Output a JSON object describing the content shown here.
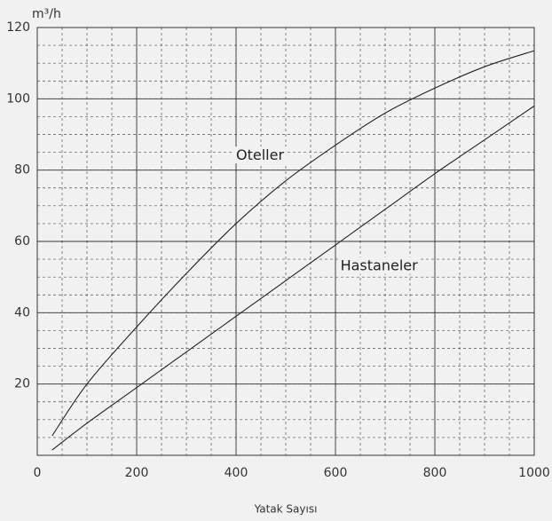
{
  "chart_data": {
    "type": "line",
    "y_label": "m³/h",
    "x_label": "Yatak Sayısı",
    "x": [
      30,
      100,
      200,
      300,
      400,
      500,
      600,
      700,
      800,
      900,
      1000
    ],
    "series": [
      {
        "name": "Oteller",
        "color": "#222222",
        "values": [
          5.5,
          20,
          36,
          51,
          65,
          77,
          87,
          96,
          103,
          109,
          113.5
        ]
      },
      {
        "name": "Hastaneler",
        "color": "#222222",
        "values": [
          1.5,
          9,
          19,
          29,
          39,
          49,
          59,
          69,
          79,
          88.5,
          98
        ]
      }
    ],
    "xlim": [
      0,
      1000
    ],
    "xticks": [
      0,
      200,
      400,
      600,
      800,
      1000
    ],
    "ylim": [
      0,
      120
    ],
    "yticks": [
      20,
      40,
      60,
      80,
      100,
      120
    ],
    "grid": true,
    "minor_grid": {
      "x": 50,
      "y": 5
    }
  }
}
